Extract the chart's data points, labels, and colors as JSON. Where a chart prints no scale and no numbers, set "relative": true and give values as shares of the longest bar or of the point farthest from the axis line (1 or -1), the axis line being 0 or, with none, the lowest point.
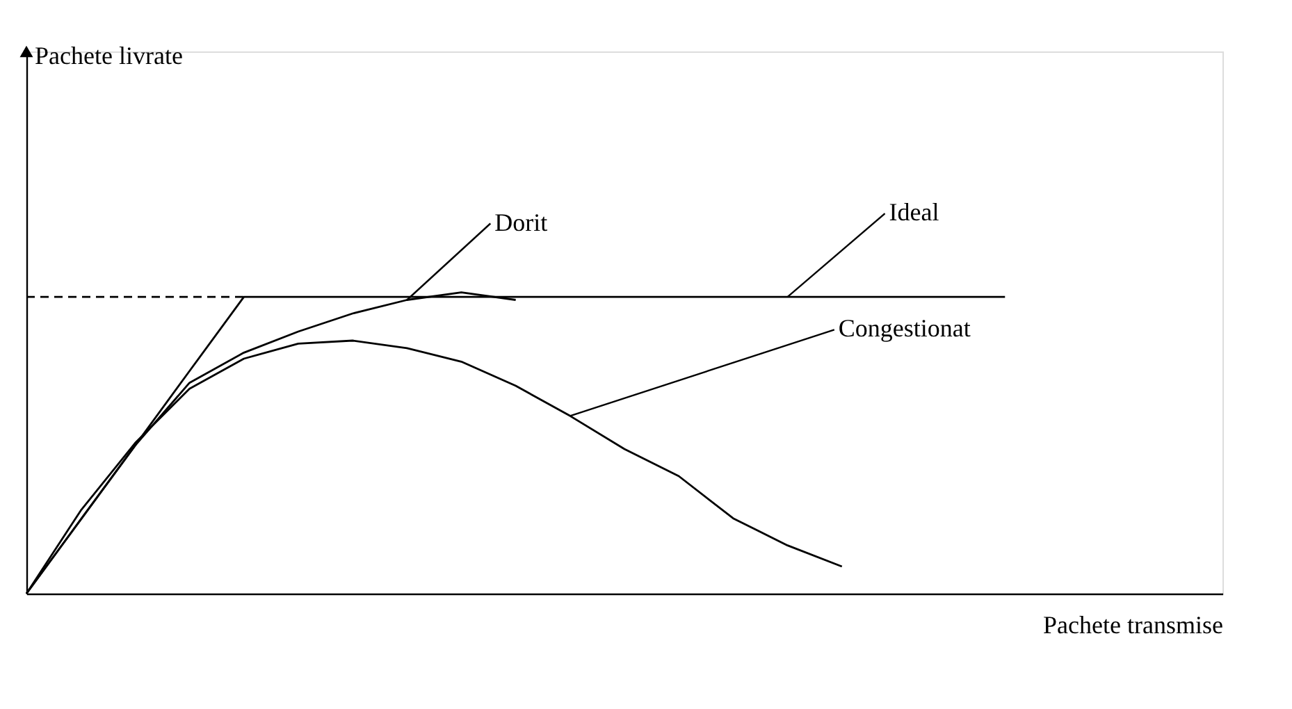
{
  "chart_data": {
    "type": "line",
    "relative": true,
    "xlabel": "Pachete transmise",
    "annotations": [
      "Pachete livrate"
    ],
    "categories": [
      null,
      null,
      null,
      null,
      null,
      null,
      null,
      null,
      null,
      null,
      null,
      null,
      null,
      null,
      null,
      null,
      null,
      null,
      null,
      null,
      null,
      null,
      null
    ],
    "tick_labels": false,
    "grid": false,
    "legend": false,
    "marker": "none",
    "series": [
      {
        "name": "Ideal",
        "color": "#000000",
        "values": [
          0,
          0.246,
          0.492,
          0.739,
          0.985,
          0.985,
          0.985,
          0.985,
          0.985,
          0.985,
          0.985,
          0.985,
          0.985,
          0.985,
          0.985,
          0.985,
          0.985,
          0.985,
          0.985,
          null,
          null,
          null,
          null
        ]
      },
      {
        "name": "Dorit",
        "color": "#000000",
        "values": [
          0,
          0.246,
          0.492,
          0.7,
          0.8,
          0.87,
          0.93,
          0.975,
          1.0,
          0.975,
          null,
          null,
          null,
          null,
          null,
          null,
          null,
          null,
          null,
          null,
          null,
          null,
          null
        ]
      },
      {
        "name": "Congestionat",
        "color": "#000000",
        "values": [
          0,
          0.276,
          0.5,
          0.68,
          0.78,
          0.83,
          0.84,
          0.815,
          0.77,
          0.69,
          0.59,
          0.48,
          0.39,
          0.25,
          0.16,
          0.09,
          null,
          null,
          null,
          null,
          null,
          null,
          null
        ]
      },
      {
        "color": "#000000",
        "line_style": "dashed",
        "values": [
          0.985,
          0.985,
          0.985,
          0.985,
          0.985,
          null,
          null,
          null,
          null,
          null,
          null,
          null,
          null,
          null,
          null,
          null,
          null,
          null,
          null,
          null,
          null,
          null,
          null
        ]
      }
    ]
  }
}
